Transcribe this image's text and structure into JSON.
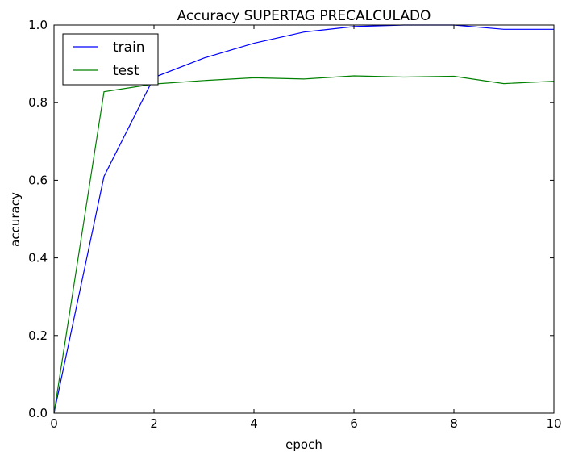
{
  "chart_data": {
    "type": "line",
    "title": "Accuracy SUPERTAG PRECALCULADO",
    "xlabel": "epoch",
    "ylabel": "accuracy",
    "xlim": [
      0,
      10
    ],
    "ylim": [
      0.0,
      1.0
    ],
    "x_ticks": [
      "0",
      "2",
      "4",
      "6",
      "8",
      "10"
    ],
    "y_ticks": [
      "0.0",
      "0.2",
      "0.4",
      "0.6",
      "0.8",
      "1.0"
    ],
    "grid": false,
    "legend_position": "upper-left",
    "x": [
      0,
      1,
      2,
      3,
      4,
      5,
      6,
      7,
      8,
      9,
      10
    ],
    "series": [
      {
        "name": "train",
        "color": "#0000ff",
        "values": [
          0.0,
          0.61,
          0.865,
          0.915,
          0.953,
          0.982,
          0.996,
          1.0,
          1.0,
          0.989,
          0.989
        ]
      },
      {
        "name": "test",
        "color": "#008000",
        "values": [
          0.0,
          0.828,
          0.848,
          0.857,
          0.864,
          0.861,
          0.869,
          0.866,
          0.868,
          0.849,
          0.855
        ]
      }
    ]
  }
}
